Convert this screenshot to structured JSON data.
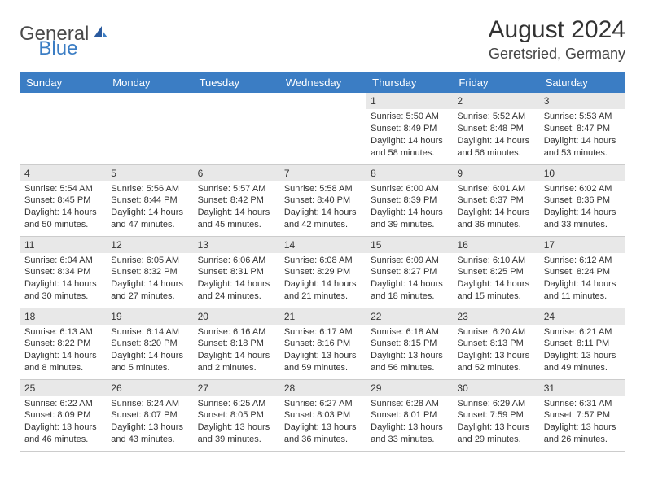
{
  "logo": {
    "text1": "General",
    "text2": "Blue"
  },
  "title": "August 2024",
  "location": "Geretsried, Germany",
  "colors": {
    "header_bg": "#3b7dc4",
    "header_text": "#ffffff",
    "daynum_bg": "#e8e8e8",
    "border": "#cccccc",
    "logo_gray": "#4a4a4a",
    "logo_blue": "#3b7dc4"
  },
  "day_headers": [
    "Sunday",
    "Monday",
    "Tuesday",
    "Wednesday",
    "Thursday",
    "Friday",
    "Saturday"
  ],
  "weeks": [
    [
      null,
      null,
      null,
      null,
      {
        "n": "1",
        "sunrise": "5:50 AM",
        "sunset": "8:49 PM",
        "daylight": "14 hours and 58 minutes."
      },
      {
        "n": "2",
        "sunrise": "5:52 AM",
        "sunset": "8:48 PM",
        "daylight": "14 hours and 56 minutes."
      },
      {
        "n": "3",
        "sunrise": "5:53 AM",
        "sunset": "8:47 PM",
        "daylight": "14 hours and 53 minutes."
      }
    ],
    [
      {
        "n": "4",
        "sunrise": "5:54 AM",
        "sunset": "8:45 PM",
        "daylight": "14 hours and 50 minutes."
      },
      {
        "n": "5",
        "sunrise": "5:56 AM",
        "sunset": "8:44 PM",
        "daylight": "14 hours and 47 minutes."
      },
      {
        "n": "6",
        "sunrise": "5:57 AM",
        "sunset": "8:42 PM",
        "daylight": "14 hours and 45 minutes."
      },
      {
        "n": "7",
        "sunrise": "5:58 AM",
        "sunset": "8:40 PM",
        "daylight": "14 hours and 42 minutes."
      },
      {
        "n": "8",
        "sunrise": "6:00 AM",
        "sunset": "8:39 PM",
        "daylight": "14 hours and 39 minutes."
      },
      {
        "n": "9",
        "sunrise": "6:01 AM",
        "sunset": "8:37 PM",
        "daylight": "14 hours and 36 minutes."
      },
      {
        "n": "10",
        "sunrise": "6:02 AM",
        "sunset": "8:36 PM",
        "daylight": "14 hours and 33 minutes."
      }
    ],
    [
      {
        "n": "11",
        "sunrise": "6:04 AM",
        "sunset": "8:34 PM",
        "daylight": "14 hours and 30 minutes."
      },
      {
        "n": "12",
        "sunrise": "6:05 AM",
        "sunset": "8:32 PM",
        "daylight": "14 hours and 27 minutes."
      },
      {
        "n": "13",
        "sunrise": "6:06 AM",
        "sunset": "8:31 PM",
        "daylight": "14 hours and 24 minutes."
      },
      {
        "n": "14",
        "sunrise": "6:08 AM",
        "sunset": "8:29 PM",
        "daylight": "14 hours and 21 minutes."
      },
      {
        "n": "15",
        "sunrise": "6:09 AM",
        "sunset": "8:27 PM",
        "daylight": "14 hours and 18 minutes."
      },
      {
        "n": "16",
        "sunrise": "6:10 AM",
        "sunset": "8:25 PM",
        "daylight": "14 hours and 15 minutes."
      },
      {
        "n": "17",
        "sunrise": "6:12 AM",
        "sunset": "8:24 PM",
        "daylight": "14 hours and 11 minutes."
      }
    ],
    [
      {
        "n": "18",
        "sunrise": "6:13 AM",
        "sunset": "8:22 PM",
        "daylight": "14 hours and 8 minutes."
      },
      {
        "n": "19",
        "sunrise": "6:14 AM",
        "sunset": "8:20 PM",
        "daylight": "14 hours and 5 minutes."
      },
      {
        "n": "20",
        "sunrise": "6:16 AM",
        "sunset": "8:18 PM",
        "daylight": "14 hours and 2 minutes."
      },
      {
        "n": "21",
        "sunrise": "6:17 AM",
        "sunset": "8:16 PM",
        "daylight": "13 hours and 59 minutes."
      },
      {
        "n": "22",
        "sunrise": "6:18 AM",
        "sunset": "8:15 PM",
        "daylight": "13 hours and 56 minutes."
      },
      {
        "n": "23",
        "sunrise": "6:20 AM",
        "sunset": "8:13 PM",
        "daylight": "13 hours and 52 minutes."
      },
      {
        "n": "24",
        "sunrise": "6:21 AM",
        "sunset": "8:11 PM",
        "daylight": "13 hours and 49 minutes."
      }
    ],
    [
      {
        "n": "25",
        "sunrise": "6:22 AM",
        "sunset": "8:09 PM",
        "daylight": "13 hours and 46 minutes."
      },
      {
        "n": "26",
        "sunrise": "6:24 AM",
        "sunset": "8:07 PM",
        "daylight": "13 hours and 43 minutes."
      },
      {
        "n": "27",
        "sunrise": "6:25 AM",
        "sunset": "8:05 PM",
        "daylight": "13 hours and 39 minutes."
      },
      {
        "n": "28",
        "sunrise": "6:27 AM",
        "sunset": "8:03 PM",
        "daylight": "13 hours and 36 minutes."
      },
      {
        "n": "29",
        "sunrise": "6:28 AM",
        "sunset": "8:01 PM",
        "daylight": "13 hours and 33 minutes."
      },
      {
        "n": "30",
        "sunrise": "6:29 AM",
        "sunset": "7:59 PM",
        "daylight": "13 hours and 29 minutes."
      },
      {
        "n": "31",
        "sunrise": "6:31 AM",
        "sunset": "7:57 PM",
        "daylight": "13 hours and 26 minutes."
      }
    ]
  ],
  "labels": {
    "sunrise": "Sunrise:",
    "sunset": "Sunset:",
    "daylight": "Daylight:"
  }
}
